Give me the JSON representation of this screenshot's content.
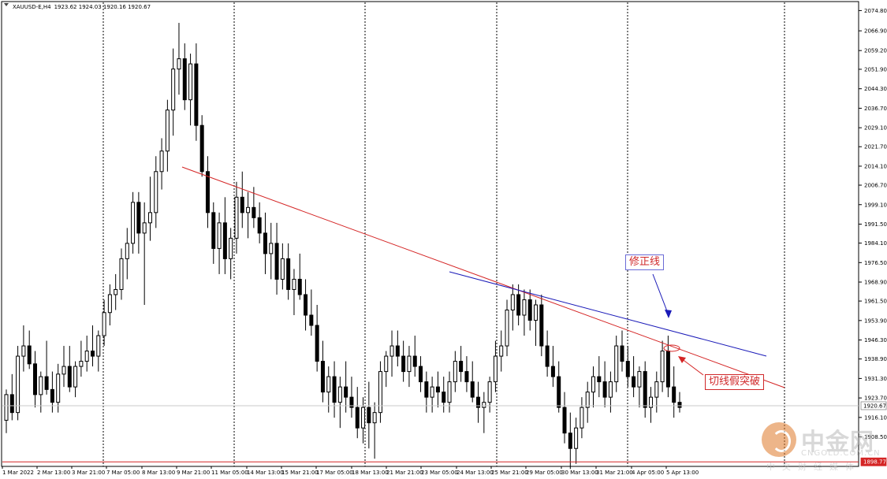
{
  "header": {
    "symbol": "XAUUSD-E,H4",
    "ohlc": "1923.62 1924.03 1920.16 1920.67"
  },
  "annotations": {
    "revision_line": "修正线",
    "false_breakout": "切线假突破"
  },
  "watermark": {
    "brand_cn": "中金网",
    "brand_en": "CNGOLD.COM.CN",
    "tagline": "中文财经媒体"
  },
  "colors": {
    "downtrend_line": "#d42424",
    "revision_line": "#1a1ab8",
    "bull": "#000000",
    "bear": "#000000",
    "current_price_box": "#d42424"
  },
  "chart_data": {
    "type": "candlestick",
    "timeframe": "H4",
    "ylim": [
      1897.0,
      2078.0
    ],
    "y_ticks": [
      2074.8,
      2066.9,
      2059.2,
      2051.9,
      2044.3,
      2036.7,
      2029.1,
      2021.7,
      2014.1,
      2006.7,
      1999.1,
      1991.5,
      1984.1,
      1976.5,
      1968.9,
      1961.5,
      1953.9,
      1946.3,
      1938.9,
      1931.3,
      1923.7,
      1916.1,
      1908.5
    ],
    "price_labels": [
      "1920.67",
      "1898.77"
    ],
    "current_price": 1920.67,
    "horizontal_level": 1898.77,
    "x_labels": [
      "1 Mar 2022",
      "2 Mar 13:00",
      "3 Mar 21:00",
      "7 Mar 05:00",
      "8 Mar 13:00",
      "9 Mar 21:00",
      "11 Mar 05:00",
      "14 Mar 13:00",
      "15 Mar 21:00",
      "17 Mar 05:00",
      "18 Mar 13:00",
      "21 Mar 21:00",
      "23 Mar 05:00",
      "24 Mar 13:00",
      "25 Mar 21:00",
      "29 Mar 05:00",
      "30 Mar 13:00",
      "31 Mar 21:00",
      "4 Apr 05:00",
      "5 Apr 13:00"
    ],
    "separators": [
      "3 Mar",
      "8 Mar",
      "11 Mar",
      "16 Mar",
      "21 Mar",
      "24 Mar",
      "29 Mar",
      "1 Apr",
      "6 Apr"
    ],
    "trendlines": [
      {
        "name": "downtrend",
        "from": [
          "9 Mar 13:00",
          2011.5
        ],
        "to": [
          "6 Apr 09:00",
          1917.5
        ]
      },
      {
        "name": "修正线",
        "from": [
          "24 Mar 09:00",
          1966.5
        ],
        "to": [
          "6 Apr 05:00",
          1933.5
        ]
      }
    ],
    "candles": [
      [
        1915,
        1927,
        1910,
        1925
      ],
      [
        1925,
        1933,
        1915,
        1918
      ],
      [
        1918,
        1944,
        1915,
        1940
      ],
      [
        1940,
        1952,
        1934,
        1944
      ],
      [
        1944,
        1950,
        1935,
        1937
      ],
      [
        1937,
        1942,
        1920,
        1925
      ],
      [
        1925,
        1934,
        1918,
        1932
      ],
      [
        1932,
        1946,
        1925,
        1927
      ],
      [
        1927,
        1934,
        1918,
        1922
      ],
      [
        1922,
        1937,
        1918,
        1933
      ],
      [
        1933,
        1944,
        1928,
        1936
      ],
      [
        1936,
        1944,
        1926,
        1928
      ],
      [
        1928,
        1938,
        1924,
        1936
      ],
      [
        1936,
        1946,
        1932,
        1938
      ],
      [
        1938,
        1948,
        1934,
        1942
      ],
      [
        1942,
        1952,
        1936,
        1940
      ],
      [
        1940,
        1950,
        1934,
        1948
      ],
      [
        1948,
        1962,
        1944,
        1957
      ],
      [
        1957,
        1968,
        1952,
        1964
      ],
      [
        1964,
        1972,
        1958,
        1966
      ],
      [
        1966,
        1982,
        1962,
        1978
      ],
      [
        1978,
        1990,
        1970,
        1984
      ],
      [
        1984,
        2004,
        1980,
        2000
      ],
      [
        2000,
        2004,
        1980,
        1988
      ],
      [
        1988,
        2000,
        1960,
        1992
      ],
      [
        1992,
        2010,
        1985,
        1996
      ],
      [
        1996,
        2018,
        1990,
        2012
      ],
      [
        2012,
        2025,
        2005,
        2020
      ],
      [
        2020,
        2040,
        2012,
        2036
      ],
      [
        2036,
        2060,
        2026,
        2052
      ],
      [
        2052,
        2070,
        2042,
        2056
      ],
      [
        2056,
        2062,
        2036,
        2040
      ],
      [
        2040,
        2058,
        2030,
        2054
      ],
      [
        2054,
        2062,
        2024,
        2030
      ],
      [
        2030,
        2034,
        2010,
        2012
      ],
      [
        2012,
        2018,
        1990,
        1996
      ],
      [
        1996,
        2000,
        1976,
        1982
      ],
      [
        1982,
        1996,
        1972,
        1992
      ],
      [
        1992,
        2002,
        1972,
        1978
      ],
      [
        1978,
        1990,
        1970,
        1986
      ],
      [
        1986,
        2008,
        1980,
        2002
      ],
      [
        2002,
        2012,
        1990,
        1996
      ],
      [
        1996,
        2004,
        1986,
        1998
      ],
      [
        1998,
        2006,
        1990,
        1994
      ],
      [
        1994,
        2000,
        1984,
        1988
      ],
      [
        1988,
        1996,
        1972,
        1980
      ],
      [
        1980,
        1992,
        1970,
        1984
      ],
      [
        1984,
        1992,
        1964,
        1970
      ],
      [
        1970,
        1984,
        1966,
        1978
      ],
      [
        1978,
        1984,
        1962,
        1966
      ],
      [
        1966,
        1974,
        1956,
        1970
      ],
      [
        1970,
        1980,
        1962,
        1964
      ],
      [
        1964,
        1970,
        1950,
        1956
      ],
      [
        1956,
        1966,
        1948,
        1952
      ],
      [
        1952,
        1960,
        1934,
        1938
      ],
      [
        1938,
        1946,
        1922,
        1926
      ],
      [
        1926,
        1936,
        1918,
        1932
      ],
      [
        1932,
        1938,
        1916,
        1922
      ],
      [
        1922,
        1932,
        1912,
        1928
      ],
      [
        1928,
        1938,
        1918,
        1924
      ],
      [
        1924,
        1932,
        1916,
        1920
      ],
      [
        1920,
        1928,
        1908,
        1912
      ],
      [
        1912,
        1924,
        1906,
        1920
      ],
      [
        1920,
        1930,
        1904,
        1914
      ],
      [
        1914,
        1922,
        1900,
        1918
      ],
      [
        1918,
        1938,
        1914,
        1934
      ],
      [
        1934,
        1942,
        1928,
        1940
      ],
      [
        1940,
        1950,
        1932,
        1944
      ],
      [
        1944,
        1950,
        1936,
        1940
      ],
      [
        1940,
        1946,
        1930,
        1934
      ],
      [
        1934,
        1944,
        1928,
        1940
      ],
      [
        1940,
        1948,
        1932,
        1936
      ],
      [
        1936,
        1940,
        1926,
        1930
      ],
      [
        1930,
        1934,
        1918,
        1924
      ],
      [
        1924,
        1932,
        1918,
        1928
      ],
      [
        1928,
        1934,
        1920,
        1926
      ],
      [
        1926,
        1932,
        1918,
        1922
      ],
      [
        1922,
        1934,
        1918,
        1930
      ],
      [
        1930,
        1942,
        1926,
        1938
      ],
      [
        1938,
        1944,
        1930,
        1934
      ],
      [
        1934,
        1940,
        1926,
        1930
      ],
      [
        1930,
        1938,
        1922,
        1924
      ],
      [
        1924,
        1930,
        1914,
        1920
      ],
      [
        1920,
        1926,
        1910,
        1922
      ],
      [
        1922,
        1932,
        1918,
        1930
      ],
      [
        1930,
        1946,
        1926,
        1940
      ],
      [
        1940,
        1950,
        1934,
        1944
      ],
      [
        1944,
        1962,
        1940,
        1958
      ],
      [
        1958,
        1968,
        1950,
        1964
      ],
      [
        1964,
        1968,
        1952,
        1956
      ],
      [
        1956,
        1966,
        1948,
        1962
      ],
      [
        1962,
        1966,
        1950,
        1954
      ],
      [
        1954,
        1962,
        1944,
        1960
      ],
      [
        1960,
        1964,
        1940,
        1944
      ],
      [
        1944,
        1950,
        1932,
        1936
      ],
      [
        1936,
        1944,
        1928,
        1932
      ],
      [
        1932,
        1938,
        1918,
        1920
      ],
      [
        1920,
        1926,
        1906,
        1910
      ],
      [
        1910,
        1918,
        1896,
        1904
      ],
      [
        1904,
        1916,
        1898,
        1912
      ],
      [
        1912,
        1924,
        1908,
        1920
      ],
      [
        1920,
        1930,
        1914,
        1926
      ],
      [
        1926,
        1936,
        1920,
        1932
      ],
      [
        1932,
        1940,
        1924,
        1930
      ],
      [
        1930,
        1938,
        1920,
        1924
      ],
      [
        1924,
        1934,
        1918,
        1930
      ],
      [
        1930,
        1948,
        1926,
        1944
      ],
      [
        1944,
        1950,
        1934,
        1938
      ],
      [
        1938,
        1944,
        1928,
        1932
      ],
      [
        1932,
        1940,
        1924,
        1928
      ],
      [
        1928,
        1936,
        1920,
        1934
      ],
      [
        1934,
        1938,
        1916,
        1920
      ],
      [
        1920,
        1928,
        1914,
        1924
      ],
      [
        1924,
        1934,
        1918,
        1930
      ],
      [
        1930,
        1946,
        1926,
        1942
      ],
      [
        1942,
        1948,
        1924,
        1928
      ],
      [
        1928,
        1936,
        1916,
        1922
      ],
      [
        1922,
        1926,
        1918,
        1920
      ]
    ]
  }
}
